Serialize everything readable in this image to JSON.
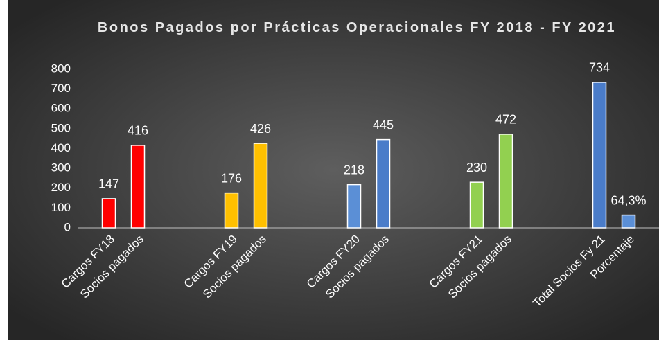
{
  "chart_data": {
    "type": "bar",
    "title": "Bonos Pagados por Prácticas Operacionales FY 2018 - FY 2021",
    "categories": [
      "Cargos FY18",
      "Socios pagados",
      "Cargos FY19",
      "Socios pagados",
      "Cargos FY20",
      "Socios pagados",
      "Cargos FY21",
      "Socios pagados",
      "Total Socios Fy 21",
      "Porcentaje"
    ],
    "values": [
      147,
      416,
      176,
      426,
      218,
      445,
      230,
      472,
      734,
      64.3
    ],
    "value_labels": [
      "147",
      "416",
      "176",
      "426",
      "218",
      "445",
      "230",
      "472",
      "734",
      "64,3%"
    ],
    "colors": [
      "#ff0000",
      "#ff0000",
      "#ffc000",
      "#ffc000",
      "#5b8fd6",
      "#4a7cc9",
      "#92d050",
      "#92d050",
      "#4a7cc9",
      "#5b8fd6"
    ],
    "ylim": [
      0,
      800
    ],
    "yticks": [
      0,
      100,
      200,
      300,
      400,
      500,
      600,
      700,
      800
    ],
    "grid": false
  }
}
